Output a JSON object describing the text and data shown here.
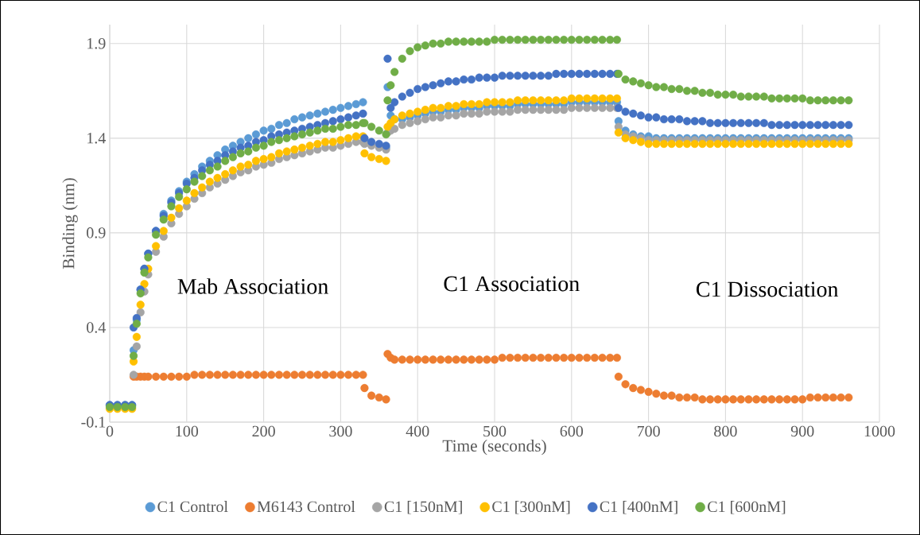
{
  "chart_data": {
    "type": "scatter",
    "xlabel": "Time (seconds)",
    "ylabel": "Binding (nm)",
    "x": [
      0,
      10,
      20,
      29,
      31,
      35,
      40,
      45,
      50,
      60,
      70,
      80,
      90,
      100,
      110,
      120,
      130,
      140,
      150,
      160,
      170,
      180,
      190,
      200,
      210,
      220,
      230,
      240,
      250,
      260,
      270,
      280,
      290,
      300,
      310,
      320,
      329,
      331,
      340,
      350,
      359,
      361,
      365,
      370,
      380,
      390,
      400,
      410,
      420,
      430,
      440,
      450,
      460,
      470,
      480,
      490,
      500,
      510,
      520,
      530,
      540,
      550,
      560,
      570,
      580,
      590,
      600,
      610,
      620,
      630,
      640,
      650,
      659,
      661,
      670,
      680,
      690,
      700,
      710,
      720,
      730,
      740,
      750,
      760,
      770,
      780,
      790,
      800,
      810,
      820,
      830,
      840,
      850,
      860,
      870,
      880,
      890,
      900,
      910,
      920,
      930,
      940,
      950,
      960
    ],
    "series": [
      {
        "name": "C1 Control",
        "color": "#5b9bd5",
        "values": [
          -0.01,
          -0.01,
          -0.01,
          -0.01,
          0.28,
          0.44,
          0.6,
          0.71,
          0.79,
          0.91,
          1.0,
          1.07,
          1.12,
          1.17,
          1.21,
          1.25,
          1.28,
          1.31,
          1.34,
          1.36,
          1.38,
          1.4,
          1.42,
          1.44,
          1.45,
          1.47,
          1.48,
          1.5,
          1.51,
          1.52,
          1.53,
          1.54,
          1.55,
          1.56,
          1.57,
          1.58,
          1.59,
          1.39,
          null,
          null,
          1.35,
          1.67,
          1.52,
          1.5,
          1.5,
          1.51,
          1.52,
          1.53,
          1.54,
          1.54,
          1.55,
          1.55,
          1.56,
          1.56,
          1.56,
          1.57,
          1.57,
          1.57,
          1.57,
          1.58,
          1.58,
          1.58,
          1.58,
          1.58,
          1.58,
          1.58,
          1.59,
          1.59,
          1.59,
          1.59,
          1.59,
          1.59,
          1.59,
          1.49,
          1.44,
          1.42,
          1.41,
          1.41,
          1.4,
          1.4,
          1.4,
          1.4,
          1.4,
          1.4,
          1.4,
          1.4,
          1.4,
          1.4,
          1.4,
          1.4,
          1.4,
          1.4,
          1.4,
          1.4,
          1.4,
          1.4,
          1.4,
          1.4,
          1.4,
          1.4,
          1.4,
          1.4,
          1.4,
          1.4
        ]
      },
      {
        "name": "M6143 Control",
        "color": "#ed7d31",
        "values": [
          null,
          null,
          null,
          null,
          0.14,
          0.14,
          0.14,
          0.14,
          0.14,
          0.14,
          0.14,
          0.14,
          0.14,
          0.14,
          0.15,
          0.15,
          0.15,
          0.15,
          0.15,
          0.15,
          0.15,
          0.15,
          0.15,
          0.15,
          0.15,
          0.15,
          0.15,
          0.15,
          0.15,
          0.15,
          0.15,
          0.15,
          0.15,
          0.15,
          0.15,
          0.15,
          0.15,
          0.08,
          0.04,
          0.03,
          0.02,
          0.26,
          0.24,
          0.23,
          0.23,
          0.23,
          0.23,
          0.23,
          0.23,
          0.23,
          0.23,
          0.23,
          0.23,
          0.23,
          0.23,
          0.23,
          0.23,
          0.24,
          0.24,
          0.24,
          0.24,
          0.24,
          0.24,
          0.24,
          0.24,
          0.24,
          0.24,
          0.24,
          0.24,
          0.24,
          0.24,
          0.24,
          0.24,
          0.14,
          0.1,
          0.08,
          0.07,
          0.06,
          0.05,
          0.04,
          0.04,
          0.03,
          0.03,
          0.03,
          0.02,
          0.02,
          0.02,
          0.02,
          0.02,
          0.02,
          0.02,
          0.02,
          0.02,
          0.02,
          0.02,
          0.02,
          0.02,
          0.02,
          0.03,
          0.03,
          0.03,
          0.03,
          0.03,
          0.03
        ]
      },
      {
        "name": "C1 [150nM]",
        "color": "#a5a5a5",
        "values": [
          null,
          null,
          null,
          null,
          0.15,
          0.3,
          0.48,
          0.59,
          0.68,
          0.8,
          0.88,
          0.95,
          1.0,
          1.04,
          1.08,
          1.11,
          1.14,
          1.16,
          1.18,
          1.2,
          1.22,
          1.23,
          1.25,
          1.26,
          1.27,
          1.29,
          1.3,
          1.31,
          1.32,
          1.33,
          1.34,
          1.35,
          1.35,
          1.36,
          1.37,
          1.38,
          1.38,
          1.37,
          1.36,
          1.35,
          1.34,
          1.43,
          1.44,
          1.45,
          1.47,
          1.48,
          1.49,
          1.5,
          1.51,
          1.51,
          1.52,
          1.52,
          1.53,
          1.53,
          1.53,
          1.54,
          1.54,
          1.54,
          1.54,
          1.55,
          1.55,
          1.55,
          1.55,
          1.55,
          1.55,
          1.55,
          1.56,
          1.56,
          1.56,
          1.56,
          1.56,
          1.56,
          1.56,
          1.46,
          1.42,
          1.41,
          1.4,
          1.39,
          1.39,
          1.39,
          1.39,
          1.39,
          1.39,
          1.39,
          1.39,
          1.39,
          1.39,
          1.39,
          1.39,
          1.39,
          1.39,
          1.39,
          1.39,
          1.39,
          1.39,
          1.39,
          1.39,
          1.39,
          1.39,
          1.39,
          1.39,
          1.39,
          1.39,
          1.39
        ]
      },
      {
        "name": "C1 [300nM]",
        "color": "#ffc000",
        "values": [
          -0.03,
          -0.03,
          -0.03,
          -0.03,
          0.22,
          0.35,
          0.52,
          0.63,
          0.71,
          0.83,
          0.91,
          0.98,
          1.03,
          1.07,
          1.11,
          1.14,
          1.17,
          1.19,
          1.21,
          1.23,
          1.25,
          1.26,
          1.28,
          1.29,
          1.3,
          1.32,
          1.33,
          1.34,
          1.35,
          1.36,
          1.37,
          1.38,
          1.38,
          1.39,
          1.4,
          1.41,
          1.41,
          1.32,
          1.3,
          1.29,
          1.28,
          1.46,
          1.48,
          1.5,
          1.52,
          1.53,
          1.54,
          1.55,
          1.56,
          1.56,
          1.57,
          1.57,
          1.58,
          1.58,
          1.58,
          1.59,
          1.59,
          1.59,
          1.59,
          1.6,
          1.6,
          1.6,
          1.6,
          1.6,
          1.6,
          1.6,
          1.61,
          1.61,
          1.61,
          1.61,
          1.61,
          1.61,
          1.61,
          1.43,
          1.4,
          1.39,
          1.38,
          1.37,
          1.37,
          1.37,
          1.37,
          1.37,
          1.37,
          1.37,
          1.37,
          1.37,
          1.37,
          1.37,
          1.37,
          1.37,
          1.37,
          1.37,
          1.37,
          1.37,
          1.37,
          1.37,
          1.37,
          1.37,
          1.37,
          1.37,
          1.37,
          1.37,
          1.37,
          1.37
        ]
      },
      {
        "name": "C1 [400nM]",
        "color": "#4472c4",
        "values": [
          -0.01,
          -0.01,
          -0.01,
          -0.01,
          0.4,
          0.45,
          0.6,
          0.71,
          0.79,
          0.91,
          0.99,
          1.06,
          1.11,
          1.16,
          1.19,
          1.23,
          1.26,
          1.28,
          1.31,
          1.33,
          1.35,
          1.36,
          1.38,
          1.39,
          1.41,
          1.42,
          1.43,
          1.44,
          1.45,
          1.46,
          1.47,
          1.48,
          1.49,
          1.5,
          1.51,
          1.52,
          1.53,
          1.4,
          1.38,
          1.37,
          1.36,
          1.82,
          1.56,
          1.59,
          1.62,
          1.64,
          1.66,
          1.67,
          1.68,
          1.69,
          1.7,
          1.7,
          1.71,
          1.71,
          1.72,
          1.72,
          1.72,
          1.73,
          1.73,
          1.73,
          1.73,
          1.73,
          1.73,
          1.73,
          1.74,
          1.74,
          1.74,
          1.74,
          1.74,
          1.74,
          1.74,
          1.74,
          1.74,
          1.56,
          1.54,
          1.53,
          1.52,
          1.51,
          1.51,
          1.5,
          1.5,
          1.5,
          1.49,
          1.49,
          1.49,
          1.48,
          1.48,
          1.48,
          1.48,
          1.48,
          1.48,
          1.48,
          1.48,
          1.47,
          1.47,
          1.47,
          1.47,
          1.47,
          1.47,
          1.47,
          1.47,
          1.47,
          1.47,
          1.47
        ]
      },
      {
        "name": "C1 [600nM]",
        "color": "#70ad47",
        "values": [
          -0.02,
          -0.02,
          -0.02,
          -0.02,
          0.25,
          0.42,
          0.58,
          0.69,
          0.77,
          0.89,
          0.97,
          1.04,
          1.09,
          1.13,
          1.17,
          1.2,
          1.23,
          1.25,
          1.28,
          1.3,
          1.32,
          1.33,
          1.35,
          1.36,
          1.38,
          1.39,
          1.4,
          1.41,
          1.42,
          1.43,
          1.44,
          1.45,
          1.45,
          1.46,
          1.47,
          1.47,
          1.48,
          1.48,
          1.46,
          1.44,
          1.42,
          1.6,
          1.68,
          1.75,
          1.82,
          1.86,
          1.88,
          1.89,
          1.9,
          1.9,
          1.91,
          1.91,
          1.91,
          1.91,
          1.91,
          1.91,
          1.92,
          1.92,
          1.92,
          1.92,
          1.92,
          1.92,
          1.92,
          1.92,
          1.92,
          1.92,
          1.92,
          1.92,
          1.92,
          1.92,
          1.92,
          1.92,
          1.92,
          1.74,
          1.71,
          1.7,
          1.69,
          1.68,
          1.67,
          1.67,
          1.66,
          1.66,
          1.65,
          1.65,
          1.64,
          1.64,
          1.63,
          1.63,
          1.63,
          1.62,
          1.62,
          1.62,
          1.62,
          1.61,
          1.61,
          1.61,
          1.61,
          1.61,
          1.6,
          1.6,
          1.6,
          1.6,
          1.6,
          1.6
        ]
      }
    ],
    "xlim": [
      0,
      1000
    ],
    "ylim": [
      -0.1,
      2.0
    ],
    "xticks": [
      0,
      100,
      200,
      300,
      400,
      500,
      600,
      700,
      800,
      900,
      1000
    ],
    "yticks": [
      -0.1,
      0.4,
      0.9,
      1.4,
      1.9
    ],
    "grid": true,
    "legend": "bottom",
    "marker": "circle",
    "annotations": [
      "Mab Association",
      "C1 Association",
      "C1 Dissociation"
    ]
  }
}
